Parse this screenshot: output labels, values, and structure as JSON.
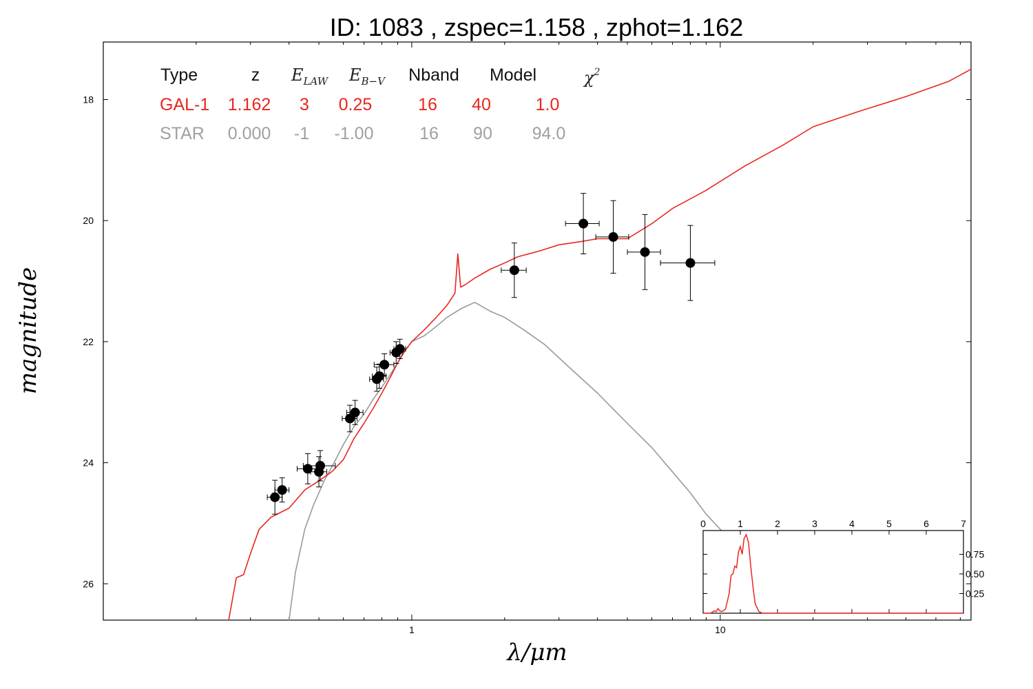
{
  "chart_data": {
    "type": "line",
    "title": "ID:  1083  , zspec=1.158 , zphot=1.162",
    "xlabel": "λ/μm",
    "ylabel": "magnitude",
    "xscale": "log",
    "xlim": [
      0.1,
      65
    ],
    "ylim": [
      26.6,
      17.05
    ],
    "y_inverted": true,
    "x_ticks": [
      {
        "value": 1,
        "label": "1"
      },
      {
        "value": 10,
        "label": "10"
      }
    ],
    "y_ticks": [
      {
        "value": 18,
        "label": "18"
      },
      {
        "value": 20,
        "label": "20"
      },
      {
        "value": 22,
        "label": "22"
      },
      {
        "value": 24,
        "label": "24"
      },
      {
        "value": 26,
        "label": "26"
      }
    ],
    "fit_table": {
      "headers": [
        "Type",
        "z",
        "E_LAW",
        "E_B-V",
        "Nband",
        "Model",
        "χ²"
      ],
      "rows": [
        {
          "name": "GAL-1",
          "color": "#e8261e",
          "values": [
            "GAL-1",
            "1.162",
            "3",
            "0.25",
            "16",
            "40",
            "1.0"
          ]
        },
        {
          "name": "STAR",
          "color": "#a0a0a0",
          "values": [
            "STAR",
            "0.000",
            "-1",
            "-1.00",
            "16",
            "90",
            "94.0"
          ]
        }
      ]
    },
    "series": [
      {
        "name": "GAL-1",
        "color": "#e8261e",
        "points": [
          [
            0.255,
            26.6
          ],
          [
            0.27,
            25.9
          ],
          [
            0.285,
            25.85
          ],
          [
            0.3,
            25.5
          ],
          [
            0.32,
            25.1
          ],
          [
            0.35,
            24.9
          ],
          [
            0.4,
            24.75
          ],
          [
            0.45,
            24.45
          ],
          [
            0.5,
            24.3
          ],
          [
            0.55,
            24.15
          ],
          [
            0.6,
            23.95
          ],
          [
            0.65,
            23.6
          ],
          [
            0.7,
            23.35
          ],
          [
            0.75,
            23.1
          ],
          [
            0.8,
            22.85
          ],
          [
            0.85,
            22.6
          ],
          [
            0.9,
            22.35
          ],
          [
            0.95,
            22.15
          ],
          [
            1.0,
            22.0
          ],
          [
            1.1,
            21.8
          ],
          [
            1.2,
            21.6
          ],
          [
            1.3,
            21.4
          ],
          [
            1.38,
            21.2
          ],
          [
            1.41,
            20.55
          ],
          [
            1.44,
            21.1
          ],
          [
            1.5,
            21.05
          ],
          [
            1.6,
            20.95
          ],
          [
            1.8,
            20.8
          ],
          [
            2.0,
            20.7
          ],
          [
            2.2,
            20.6
          ],
          [
            2.6,
            20.5
          ],
          [
            3.0,
            20.4
          ],
          [
            3.5,
            20.35
          ],
          [
            4.0,
            20.3
          ],
          [
            5.0,
            20.3
          ],
          [
            6.0,
            20.05
          ],
          [
            7.0,
            19.8
          ],
          [
            9.0,
            19.5
          ],
          [
            12.0,
            19.1
          ],
          [
            16.0,
            18.75
          ],
          [
            20.0,
            18.45
          ],
          [
            28.0,
            18.2
          ],
          [
            40.0,
            17.95
          ],
          [
            55.0,
            17.7
          ],
          [
            65.0,
            17.5
          ]
        ]
      },
      {
        "name": "STAR",
        "color": "#999999",
        "points": [
          [
            0.4,
            26.6
          ],
          [
            0.42,
            25.8
          ],
          [
            0.45,
            25.1
          ],
          [
            0.48,
            24.7
          ],
          [
            0.52,
            24.3
          ],
          [
            0.56,
            24.0
          ],
          [
            0.6,
            23.7
          ],
          [
            0.65,
            23.4
          ],
          [
            0.7,
            23.2
          ],
          [
            0.75,
            22.95
          ],
          [
            0.8,
            22.75
          ],
          [
            0.85,
            22.55
          ],
          [
            0.9,
            22.35
          ],
          [
            0.95,
            22.15
          ],
          [
            1.0,
            22.0
          ],
          [
            1.1,
            21.9
          ],
          [
            1.2,
            21.75
          ],
          [
            1.3,
            21.6
          ],
          [
            1.45,
            21.45
          ],
          [
            1.6,
            21.35
          ],
          [
            1.8,
            21.5
          ],
          [
            2.0,
            21.6
          ],
          [
            2.3,
            21.8
          ],
          [
            2.7,
            22.05
          ],
          [
            3.2,
            22.4
          ],
          [
            4.0,
            22.85
          ],
          [
            5.0,
            23.35
          ],
          [
            6.0,
            23.75
          ],
          [
            7.0,
            24.15
          ],
          [
            8.0,
            24.5
          ],
          [
            9.0,
            24.85
          ],
          [
            10.0,
            25.1
          ],
          [
            11.0,
            25.3
          ]
        ]
      }
    ],
    "photometry": {
      "name": "observed",
      "color": "#000000",
      "points": [
        {
          "x": 0.36,
          "y": 24.57,
          "xerr": 0.02,
          "yerr": 0.28
        },
        {
          "x": 0.38,
          "y": 24.45,
          "xerr": 0.02,
          "yerr": 0.2
        },
        {
          "x": 0.46,
          "y": 24.1,
          "xerr": 0.035,
          "yerr": 0.25
        },
        {
          "x": 0.5,
          "y": 24.15,
          "xerr": 0.03,
          "yerr": 0.25
        },
        {
          "x": 0.505,
          "y": 24.05,
          "xerr": 0.06,
          "yerr": 0.25
        },
        {
          "x": 0.63,
          "y": 23.27,
          "xerr": 0.035,
          "yerr": 0.22
        },
        {
          "x": 0.655,
          "y": 23.17,
          "xerr": 0.04,
          "yerr": 0.2
        },
        {
          "x": 0.77,
          "y": 22.62,
          "xerr": 0.04,
          "yerr": 0.2
        },
        {
          "x": 0.785,
          "y": 22.57,
          "xerr": 0.04,
          "yerr": 0.2
        },
        {
          "x": 0.815,
          "y": 22.38,
          "xerr": 0.06,
          "yerr": 0.18
        },
        {
          "x": 0.89,
          "y": 22.18,
          "xerr": 0.04,
          "yerr": 0.18
        },
        {
          "x": 0.915,
          "y": 22.12,
          "xerr": 0.04,
          "yerr": 0.16
        },
        {
          "x": 2.15,
          "y": 20.82,
          "xerr": 0.2,
          "yerr": 0.45
        },
        {
          "x": 3.6,
          "y": 20.05,
          "xerr": 0.45,
          "yerr": 0.5
        },
        {
          "x": 4.5,
          "y": 20.27,
          "xerr": 0.55,
          "yerr": 0.6
        },
        {
          "x": 5.7,
          "y": 20.52,
          "xerr": 0.7,
          "yerr": 0.62
        },
        {
          "x": 8.0,
          "y": 20.7,
          "xerr": 1.6,
          "yerr": 0.62
        }
      ]
    },
    "inset": {
      "type": "line",
      "description_free": true,
      "xlim": [
        0,
        7
      ],
      "ylim": [
        0,
        1.0
      ],
      "x_ticks": [
        "0",
        "1",
        "2",
        "3",
        "4",
        "5",
        "6",
        "7"
      ],
      "y_ticks": [
        {
          "value": 0.25,
          "label": "0.25"
        },
        {
          "value": 0.5,
          "label": "0.50"
        },
        {
          "value": 0.75,
          "label": "0.75"
        }
      ],
      "color": "#e8261e",
      "points": [
        [
          0.0,
          0.0
        ],
        [
          0.2,
          0.0
        ],
        [
          0.3,
          0.03
        ],
        [
          0.35,
          0.02
        ],
        [
          0.4,
          0.06
        ],
        [
          0.45,
          0.03
        ],
        [
          0.5,
          0.02
        ],
        [
          0.6,
          0.05
        ],
        [
          0.7,
          0.25
        ],
        [
          0.75,
          0.48
        ],
        [
          0.8,
          0.5
        ],
        [
          0.85,
          0.6
        ],
        [
          0.9,
          0.58
        ],
        [
          0.95,
          0.78
        ],
        [
          1.0,
          0.85
        ],
        [
          1.05,
          0.75
        ],
        [
          1.1,
          0.95
        ],
        [
          1.16,
          1.0
        ],
        [
          1.22,
          0.9
        ],
        [
          1.28,
          0.6
        ],
        [
          1.35,
          0.3
        ],
        [
          1.4,
          0.12
        ],
        [
          1.5,
          0.02
        ],
        [
          1.6,
          0.0
        ],
        [
          7.0,
          0.0
        ]
      ]
    }
  }
}
